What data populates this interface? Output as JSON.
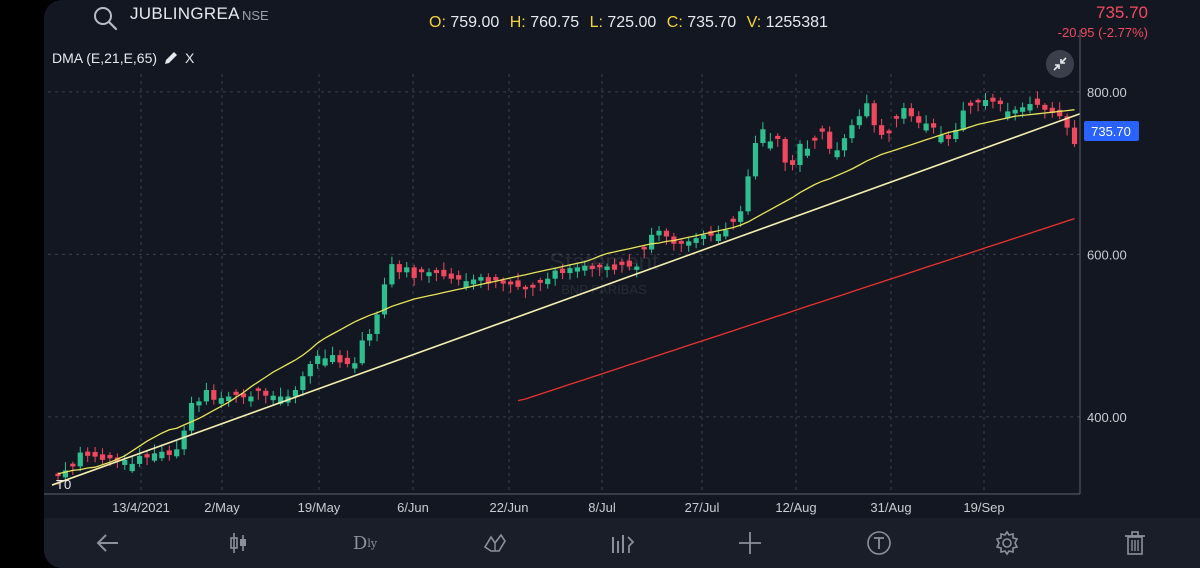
{
  "header": {
    "symbol": "JUBLINGREA",
    "exchange": "NSE",
    "ohlc": {
      "o_label": "O:",
      "o": "759.00",
      "h_label": "H:",
      "h": "760.75",
      "l_label": "L:",
      "l": "725.00",
      "c_label": "C:",
      "c": "735.70",
      "v_label": "V:",
      "v": "1255381"
    },
    "last_price": "735.70",
    "change": "-20.95 (-2.77%)"
  },
  "indicator": {
    "label": "DMA (E,21,E,65)",
    "close": "X"
  },
  "watermark": {
    "line1": "Statement",
    "line2": "BNP PARIBAS"
  },
  "tick_t0": "T0",
  "toolbar": {
    "interval_main": "D",
    "interval_sub": "ly"
  },
  "colors": {
    "up": "#2fbf8f",
    "down": "#f0485f",
    "ema21": "#e8e35a",
    "ema65": "#e8332e",
    "trendline": "#f3edb0",
    "price_tag": "#2962ff"
  },
  "chart_data": {
    "type": "candlestick",
    "symbol": "JUBLINGREA",
    "x_ticks": [
      "13/4/2021",
      "2/May",
      "19/May",
      "6/Jun",
      "22/Jun",
      "8/Jul",
      "27/Jul",
      "12/Aug",
      "31/Aug",
      "19/Sep"
    ],
    "y_ticks": [
      400,
      600,
      800
    ],
    "ylim": [
      305,
      822
    ],
    "last_price": 735.7,
    "closes": [
      327,
      334,
      339,
      356,
      352,
      351,
      347,
      349,
      345,
      347,
      342,
      352,
      350,
      355,
      357,
      353,
      360,
      383,
      417,
      419,
      433,
      421,
      423,
      425,
      427,
      424,
      425,
      432,
      426,
      426,
      425,
      425,
      433,
      450,
      465,
      475,
      472,
      476,
      467,
      465,
      466,
      494,
      502,
      526,
      563,
      588,
      578,
      584,
      571,
      578,
      578,
      577,
      573,
      570,
      569,
      567,
      569,
      572,
      564,
      568,
      564,
      563,
      560,
      557,
      559,
      565,
      570,
      580,
      577,
      583,
      584,
      586,
      582,
      584,
      585,
      581,
      587,
      585,
      585,
      606,
      624,
      629,
      622,
      613,
      613,
      616,
      620,
      624,
      623,
      625,
      630,
      640,
      653,
      696,
      737,
      754,
      739,
      742,
      713,
      710,
      736,
      730,
      740,
      751,
      730,
      728,
      743,
      759,
      770,
      786,
      759,
      747,
      749,
      767,
      780,
      770,
      762,
      761,
      756,
      747,
      742,
      753,
      777,
      783,
      787,
      790,
      788,
      785,
      776,
      778,
      781,
      785,
      784,
      778,
      774,
      770,
      756,
      735.7
    ],
    "ema21": [
      330,
      332,
      334,
      335,
      337,
      338,
      341,
      344,
      348,
      352,
      358,
      364,
      370,
      375,
      380,
      384,
      386,
      390,
      394,
      398,
      403,
      408,
      413,
      418,
      424,
      430,
      437,
      443,
      449,
      455,
      460,
      465,
      470,
      476,
      483,
      491,
      497,
      502,
      507,
      512,
      517,
      521,
      525,
      528,
      532,
      536,
      539,
      542,
      545,
      547,
      549,
      551,
      553,
      555,
      557,
      559,
      561,
      563,
      565,
      567,
      569,
      571,
      573,
      575,
      577,
      579,
      581,
      583,
      585,
      587,
      589,
      591,
      594,
      598,
      601,
      603,
      605,
      607,
      609,
      611,
      613,
      614,
      616,
      617,
      619,
      621,
      623,
      625,
      627,
      629,
      631,
      633,
      636,
      640,
      645,
      650,
      655,
      660,
      665,
      670,
      676,
      681,
      686,
      690,
      693,
      697,
      701,
      705,
      710,
      715,
      719,
      723,
      726,
      729,
      732,
      735,
      738,
      741,
      744,
      747,
      750,
      752,
      754,
      757,
      760,
      762,
      764,
      766,
      768,
      770,
      771,
      772,
      773,
      774,
      775,
      776,
      777,
      778
    ],
    "ema65": [
      null,
      null,
      null,
      null,
      null,
      null,
      null,
      null,
      null,
      null,
      null,
      null,
      null,
      null,
      null,
      null,
      null,
      null,
      null,
      null,
      null,
      null,
      null,
      null,
      null,
      null,
      null,
      null,
      null,
      null,
      null,
      null,
      null,
      null,
      null,
      null,
      null,
      null,
      null,
      null,
      null,
      null,
      null,
      null,
      null,
      null,
      null,
      null,
      null,
      null,
      null,
      null,
      null,
      null,
      null,
      null,
      null,
      null,
      null,
      null,
      null,
      null,
      420,
      422,
      425,
      428,
      431,
      434,
      437,
      440,
      443,
      446,
      449,
      452,
      455,
      458,
      461,
      464,
      467,
      470,
      473,
      476,
      479,
      482,
      485,
      488,
      491,
      494,
      497,
      500,
      503,
      506,
      509,
      512,
      515,
      518,
      521,
      524,
      527,
      530,
      533,
      536,
      539,
      542,
      545,
      548,
      551,
      554,
      557,
      560,
      563,
      566,
      569,
      572,
      575,
      578,
      581,
      584,
      587,
      590,
      593,
      596,
      599,
      602,
      605,
      608,
      611,
      614,
      617,
      620,
      623,
      626,
      629,
      632,
      635,
      638,
      641,
      644
    ],
    "trendline": [
      [
        0,
        316
      ],
      [
        137,
        768
      ]
    ]
  }
}
